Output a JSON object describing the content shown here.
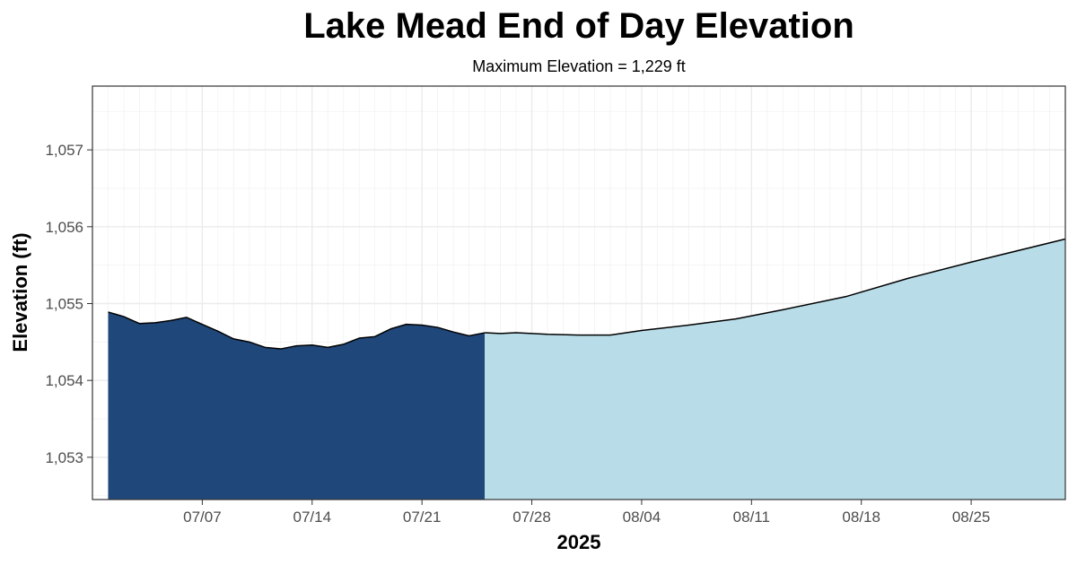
{
  "chart_data": {
    "type": "area",
    "title": "Lake Mead End of Day Elevation",
    "subtitle": "Maximum Elevation = 1,229 ft",
    "xlabel": "2025",
    "ylabel": "Elevation (ft)",
    "xlim": [
      "2025-06-30",
      "2025-08-31"
    ],
    "ylim": [
      1052.45,
      1057.83
    ],
    "x_ticks": [
      {
        "date": "2025-07-07",
        "label": "07/07"
      },
      {
        "date": "2025-07-14",
        "label": "07/14"
      },
      {
        "date": "2025-07-21",
        "label": "07/21"
      },
      {
        "date": "2025-07-28",
        "label": "07/28"
      },
      {
        "date": "2025-08-04",
        "label": "08/04"
      },
      {
        "date": "2025-08-11",
        "label": "08/11"
      },
      {
        "date": "2025-08-18",
        "label": "08/18"
      },
      {
        "date": "2025-08-25",
        "label": "08/25"
      }
    ],
    "y_ticks": [
      {
        "value": 1053,
        "label": "1,053"
      },
      {
        "value": 1054,
        "label": "1,054"
      },
      {
        "value": 1055,
        "label": "1,055"
      },
      {
        "value": 1056,
        "label": "1,056"
      },
      {
        "value": 1057,
        "label": "1,057"
      }
    ],
    "grid": true,
    "legend": "none",
    "series": [
      {
        "color": "#20477a",
        "points": [
          [
            "2025-07-01",
            1054.89
          ],
          [
            "2025-07-02",
            1054.83
          ],
          [
            "2025-07-03",
            1054.74
          ],
          [
            "2025-07-04",
            1054.75
          ],
          [
            "2025-07-05",
            1054.78
          ],
          [
            "2025-07-06",
            1054.82
          ],
          [
            "2025-07-07",
            1054.73
          ],
          [
            "2025-07-08",
            1054.64
          ],
          [
            "2025-07-09",
            1054.54
          ],
          [
            "2025-07-10",
            1054.5
          ],
          [
            "2025-07-11",
            1054.43
          ],
          [
            "2025-07-12",
            1054.41
          ],
          [
            "2025-07-13",
            1054.45
          ],
          [
            "2025-07-14",
            1054.46
          ],
          [
            "2025-07-15",
            1054.43
          ],
          [
            "2025-07-16",
            1054.47
          ],
          [
            "2025-07-17",
            1054.55
          ],
          [
            "2025-07-18",
            1054.57
          ],
          [
            "2025-07-19",
            1054.67
          ],
          [
            "2025-07-20",
            1054.73
          ],
          [
            "2025-07-21",
            1054.72
          ],
          [
            "2025-07-22",
            1054.69
          ],
          [
            "2025-07-23",
            1054.63
          ],
          [
            "2025-07-24",
            1054.58
          ],
          [
            "2025-07-25",
            1054.62
          ]
        ]
      },
      {
        "color": "#b9dde8",
        "points": [
          [
            "2025-07-25",
            1054.62
          ],
          [
            "2025-07-26",
            1054.61
          ],
          [
            "2025-07-27",
            1054.62
          ],
          [
            "2025-07-29",
            1054.6
          ],
          [
            "2025-07-31",
            1054.59
          ],
          [
            "2025-08-02",
            1054.59
          ],
          [
            "2025-08-04",
            1054.65
          ],
          [
            "2025-08-07",
            1054.72
          ],
          [
            "2025-08-10",
            1054.8
          ],
          [
            "2025-08-13",
            1054.92
          ],
          [
            "2025-08-17",
            1055.09
          ],
          [
            "2025-08-21",
            1055.33
          ],
          [
            "2025-08-25",
            1055.54
          ],
          [
            "2025-08-31",
            1055.84
          ]
        ]
      }
    ]
  }
}
